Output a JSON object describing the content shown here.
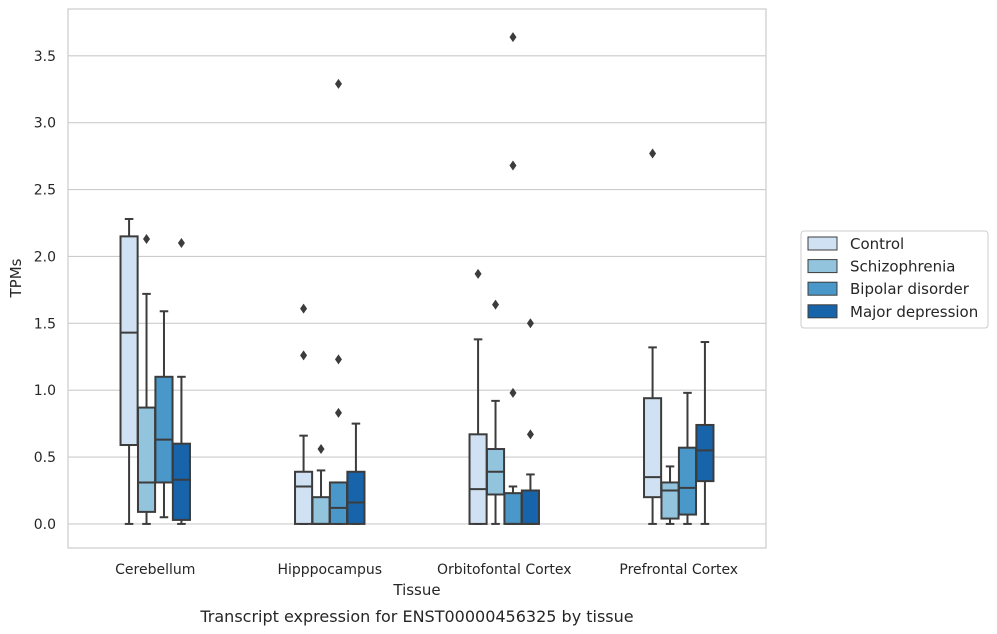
{
  "chart_data": {
    "type": "boxplot",
    "title": "",
    "caption": "Transcript expression for ENST00000456325 by tissue",
    "xlabel": "Tissue",
    "ylabel": "TPMs",
    "ylim": [
      -0.18,
      3.85
    ],
    "yticks": [
      "0.0",
      "0.5",
      "1.0",
      "1.5",
      "2.0",
      "2.5",
      "3.0",
      "3.5"
    ],
    "grid": "horizontal",
    "legend_position": "right",
    "categories": [
      "Cerebellum",
      "Hipppocampus",
      "Orbitofontal Cortex",
      "Prefrontal Cortex"
    ],
    "series": [
      {
        "name": "Control",
        "color": "#cfe1f2",
        "boxes": [
          {
            "whislo": 0.0,
            "q1": 0.59,
            "med": 1.43,
            "q3": 2.15,
            "whishi": 2.28,
            "fliers": []
          },
          {
            "whislo": 0.0,
            "q1": 0.0,
            "med": 0.28,
            "q3": 0.39,
            "whishi": 0.66,
            "fliers": [
              1.26,
              1.61
            ]
          },
          {
            "whislo": 0.0,
            "q1": 0.0,
            "med": 0.26,
            "q3": 0.67,
            "whishi": 1.38,
            "fliers": [
              1.87
            ]
          },
          {
            "whislo": 0.0,
            "q1": 0.2,
            "med": 0.35,
            "q3": 0.94,
            "whishi": 1.32,
            "fliers": [
              2.77
            ]
          }
        ]
      },
      {
        "name": "Schizophrenia",
        "color": "#93c4de",
        "boxes": [
          {
            "whislo": 0.0,
            "q1": 0.09,
            "med": 0.31,
            "q3": 0.87,
            "whishi": 1.72,
            "fliers": [
              2.13
            ]
          },
          {
            "whislo": 0.0,
            "q1": 0.0,
            "med": 0.0,
            "q3": 0.2,
            "whishi": 0.4,
            "fliers": [
              0.56
            ]
          },
          {
            "whislo": 0.0,
            "q1": 0.22,
            "med": 0.39,
            "q3": 0.56,
            "whishi": 0.92,
            "fliers": [
              1.64
            ]
          },
          {
            "whislo": 0.0,
            "q1": 0.04,
            "med": 0.25,
            "q3": 0.31,
            "whishi": 0.43,
            "fliers": []
          }
        ]
      },
      {
        "name": "Bipolar disorder",
        "color": "#4a98c9",
        "boxes": [
          {
            "whislo": 0.05,
            "q1": 0.31,
            "med": 0.63,
            "q3": 1.1,
            "whishi": 1.59,
            "fliers": []
          },
          {
            "whislo": 0.0,
            "q1": 0.0,
            "med": 0.12,
            "q3": 0.31,
            "whishi": 0.31,
            "fliers": [
              0.83,
              1.23,
              3.29
            ]
          },
          {
            "whislo": 0.0,
            "q1": 0.0,
            "med": 0.0,
            "q3": 0.23,
            "whishi": 0.28,
            "fliers": [
              0.98,
              2.68,
              3.64
            ]
          },
          {
            "whislo": 0.0,
            "q1": 0.07,
            "med": 0.27,
            "q3": 0.57,
            "whishi": 0.98,
            "fliers": []
          }
        ]
      },
      {
        "name": "Major depression",
        "color": "#1764ab",
        "boxes": [
          {
            "whislo": 0.0,
            "q1": 0.03,
            "med": 0.33,
            "q3": 0.6,
            "whishi": 1.1,
            "fliers": [
              2.1
            ]
          },
          {
            "whislo": 0.0,
            "q1": 0.0,
            "med": 0.16,
            "q3": 0.39,
            "whishi": 0.75,
            "fliers": []
          },
          {
            "whislo": 0.0,
            "q1": 0.0,
            "med": 0.0,
            "q3": 0.25,
            "whishi": 0.37,
            "fliers": [
              0.67,
              1.5
            ]
          },
          {
            "whislo": 0.0,
            "q1": 0.32,
            "med": 0.55,
            "q3": 0.74,
            "whishi": 1.36,
            "fliers": []
          }
        ]
      }
    ]
  }
}
